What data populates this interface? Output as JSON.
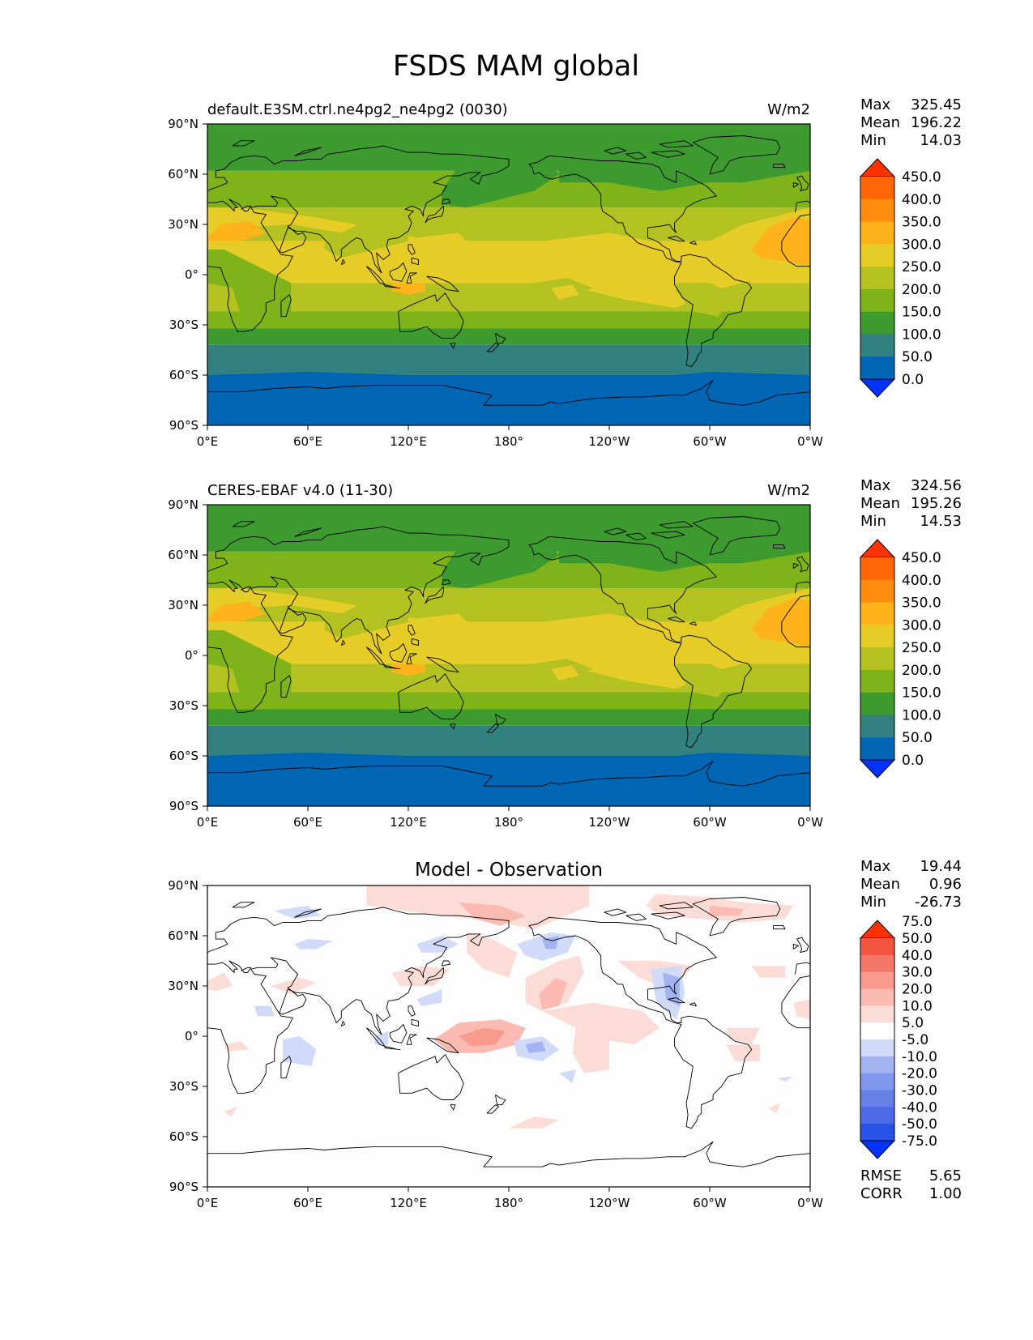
{
  "figure": {
    "title": "FSDS MAM global"
  },
  "panels": [
    {
      "id": "model",
      "left_title": "default.E3SM.ctrl.ne4pg2_ne4pg2 (0030)",
      "center_title": "",
      "units": "W/m2",
      "stats": [
        {
          "label": "Max",
          "value": "325.45"
        },
        {
          "label": "Mean",
          "value": "196.22"
        },
        {
          "label": "Min",
          "value": "14.03"
        }
      ],
      "colorbar": {
        "colors": [
          "#0033ff",
          "#0066b3",
          "#338080",
          "#3d9a2f",
          "#7fb31a",
          "#b3c220",
          "#e6cc26",
          "#ffb31a",
          "#ff8c0d",
          "#ff6608",
          "#ff3300"
        ],
        "labels": [
          "0.0",
          "50.0",
          "100.0",
          "150.0",
          "200.0",
          "250.0",
          "300.0",
          "350.0",
          "400.0",
          "450.0"
        ]
      }
    },
    {
      "id": "obs",
      "left_title": "CERES-EBAF v4.0 (11-30)",
      "center_title": "",
      "units": "W/m2",
      "stats": [
        {
          "label": "Max",
          "value": "324.56"
        },
        {
          "label": "Mean",
          "value": "195.26"
        },
        {
          "label": "Min",
          "value": "14.53"
        }
      ],
      "colorbar": {
        "colors": [
          "#0033ff",
          "#0066b3",
          "#338080",
          "#3d9a2f",
          "#7fb31a",
          "#b3c220",
          "#e6cc26",
          "#ffb31a",
          "#ff8c0d",
          "#ff6608",
          "#ff3300"
        ],
        "labels": [
          "0.0",
          "50.0",
          "100.0",
          "150.0",
          "200.0",
          "250.0",
          "300.0",
          "350.0",
          "400.0",
          "450.0"
        ]
      }
    },
    {
      "id": "diff",
      "left_title": "",
      "center_title": "Model - Observation",
      "units": "",
      "stats": [
        {
          "label": "Max",
          "value": "19.44"
        },
        {
          "label": "Mean",
          "value": "0.96"
        },
        {
          "label": "Min",
          "value": "-26.73"
        }
      ],
      "extra_stats": [
        {
          "label": "RMSE",
          "value": "5.65"
        },
        {
          "label": "CORR",
          "value": "1.00"
        }
      ],
      "colorbar": {
        "colors": [
          "#0033ff",
          "#2952e6",
          "#4d6be6",
          "#6680e6",
          "#8099ee",
          "#a3b3f0",
          "#d1dbf9",
          "#fdfdfd",
          "#fcdcd7",
          "#fbbbb2",
          "#f89a8d",
          "#f47868",
          "#f25640",
          "#ff3300"
        ],
        "labels": [
          "-75.0",
          "-50.0",
          "-40.0",
          "-30.0",
          "-20.0",
          "-10.0",
          "-5.0",
          "5.0",
          "10.0",
          "20.0",
          "30.0",
          "40.0",
          "50.0",
          "75.0"
        ]
      }
    }
  ],
  "axes": {
    "lat_ticks": [
      "90°N",
      "60°N",
      "30°N",
      "0°",
      "30°S",
      "60°S",
      "90°S"
    ],
    "lon_ticks": [
      "0°E",
      "60°E",
      "120°E",
      "180°",
      "120°W",
      "60°W",
      "0°W"
    ]
  },
  "chart_data": {
    "type": "heatmap",
    "variable": "FSDS",
    "season": "MAM",
    "units": "W/m2",
    "panels": [
      {
        "name": "default.E3SM.ctrl.ne4pg2_ne4pg2 (0030)",
        "max": 325.45,
        "mean": 196.22,
        "min": 14.03,
        "levels": [
          0,
          50,
          100,
          150,
          200,
          250,
          300,
          350,
          400,
          450
        ]
      },
      {
        "name": "CERES-EBAF v4.0 (11-30)",
        "max": 324.56,
        "mean": 195.26,
        "min": 14.53,
        "levels": [
          0,
          50,
          100,
          150,
          200,
          250,
          300,
          350,
          400,
          450
        ]
      },
      {
        "name": "Model - Observation",
        "max": 19.44,
        "mean": 0.96,
        "min": -26.73,
        "rmse": 5.65,
        "corr": 1.0,
        "levels": [
          -75,
          -50,
          -40,
          -30,
          -20,
          -10,
          -5,
          5,
          10,
          20,
          30,
          40,
          50,
          75
        ]
      }
    ],
    "xlim": [
      0,
      360
    ],
    "ylim": [
      -90,
      90
    ]
  }
}
